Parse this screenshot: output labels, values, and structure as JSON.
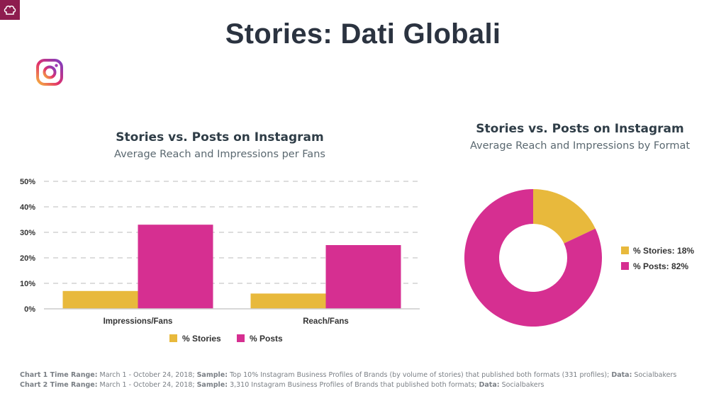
{
  "title": "Stories: Dati Globali",
  "colors": {
    "stories": "#e8b93c",
    "posts": "#d62f91",
    "title": "#2b3340",
    "corner": "#8e1d4f"
  },
  "icons": {
    "corner": "chef-hat-icon",
    "brand": "instagram-icon"
  },
  "chart_data": [
    {
      "type": "bar",
      "title": "Stories vs. Posts on Instagram",
      "subtitle": "Average Reach and Impressions per Fans",
      "categories": [
        "Impressions/Fans",
        "Reach/Fans"
      ],
      "series": [
        {
          "name": "% Stories",
          "values": [
            7,
            6
          ]
        },
        {
          "name": "% Posts",
          "values": [
            33,
            25
          ]
        }
      ],
      "yticks": [
        "0%",
        "10%",
        "20%",
        "30%",
        "40%",
        "50%"
      ],
      "ylim": [
        0,
        50
      ],
      "grid": true,
      "legend": "bottom"
    },
    {
      "type": "pie",
      "title": "Stories vs. Posts on Instagram",
      "subtitle": "Average Reach and Impressions by Format",
      "slices": [
        {
          "label": "% Stories: 18%",
          "value": 18
        },
        {
          "label": "% Posts: 82%",
          "value": 82
        }
      ],
      "donut": true,
      "legend": "right"
    }
  ],
  "footnotes": [
    {
      "k1": "Chart 1 Time Range:",
      "v1": " March 1 - October 24, 2018; ",
      "k2": "Sample:",
      "v2": " Top 10% Instagram Business Profiles of Brands (by volume of stories) that published both formats (331 profiles); ",
      "k3": "Data:",
      "v3": " Socialbakers"
    },
    {
      "k1": "Chart 2 Time Range:",
      "v1": " March 1 - October 24, 2018; ",
      "k2": "Sample:",
      "v2": " 3,310 Instagram Business Profiles of Brands that published both formats; ",
      "k3": "Data:",
      "v3": " Socialbakers"
    }
  ]
}
